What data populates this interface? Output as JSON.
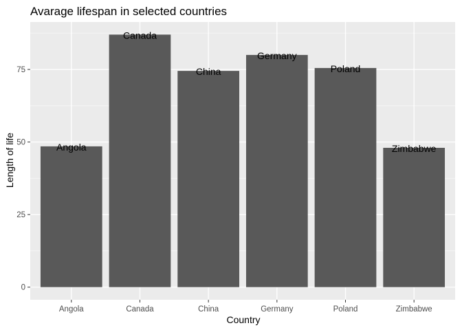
{
  "chart_data": {
    "type": "bar",
    "title": "Avarage lifespan in selected countries",
    "xlabel": "Country",
    "ylabel": "Length of life",
    "categories": [
      "Angola",
      "Canada",
      "China",
      "Germany",
      "Poland",
      "Zimbabwe"
    ],
    "values": [
      48.5,
      87,
      74.5,
      80,
      75.5,
      48
    ],
    "bar_labels": [
      "Angola",
      "Canada",
      "China",
      "Germany",
      "Poland",
      "Zimbabwe"
    ],
    "yticks": [
      0,
      25,
      50,
      75
    ],
    "ylim": [
      -4.35,
      91.35
    ],
    "grid": true,
    "colors": {
      "panel": "#ebebeb",
      "bar": "#595959",
      "grid_major": "#ffffff",
      "grid_minor": "#f5f5f5",
      "tick": "#333333"
    }
  }
}
